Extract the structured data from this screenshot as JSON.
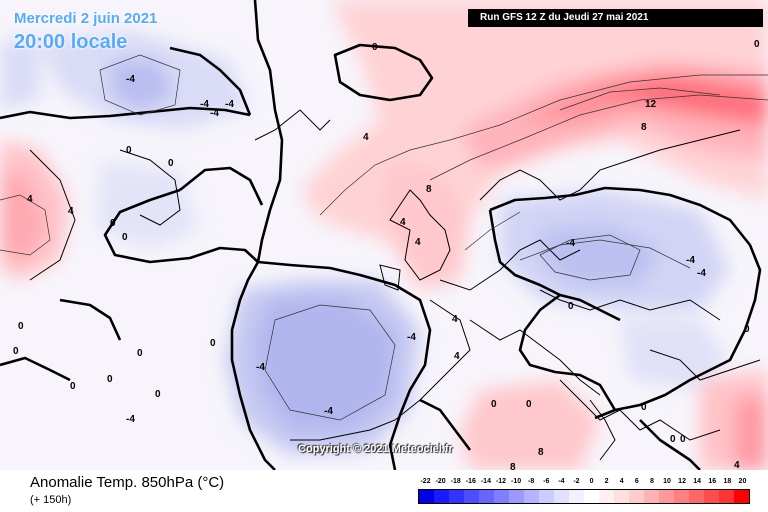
{
  "header": {
    "valid_date": "Mercredi 2 juin 2021",
    "valid_time": "20:00 locale",
    "run_info": "Run GFS 12 Z du Jeudi 27 mai 2021"
  },
  "map": {
    "contour_labels": [
      "0",
      "0",
      "0",
      "0",
      "0",
      "0",
      "0",
      "0",
      "0",
      "0",
      "0",
      "0",
      "0",
      "0",
      "0",
      "0",
      "0",
      "0",
      "0",
      "0",
      "-4",
      "-4",
      "-4",
      "-4",
      "-4",
      "-4",
      "-4",
      "-4",
      "-4",
      "-4",
      "-4",
      "4",
      "4",
      "4",
      "4",
      "4",
      "4",
      "4",
      "4",
      "8",
      "8",
      "8",
      "8",
      "12"
    ],
    "copyright": "Copyright © 2021 Meteociel.fr"
  },
  "footer": {
    "parameter": "Anomalie Temp. 850hPa (°C)",
    "lead_time": "(+ 150h)"
  },
  "legend": {
    "labels": [
      "-22",
      "-20",
      "-18",
      "-16",
      "-14",
      "-12",
      "-10",
      "-8",
      "-6",
      "-4",
      "-2",
      "0",
      "2",
      "4",
      "6",
      "8",
      "10",
      "12",
      "14",
      "16",
      "18",
      "20"
    ],
    "colors": [
      "#0000e6",
      "#1a1aff",
      "#3333ff",
      "#4d4dff",
      "#6666ff",
      "#7f7fff",
      "#9999ff",
      "#b3b3ff",
      "#ccccff",
      "#e0e0ff",
      "#f2f2ff",
      "#ffffff",
      "#fff0f0",
      "#ffe0e0",
      "#ffcccc",
      "#ffb3b3",
      "#ff9999",
      "#ff8080",
      "#ff6666",
      "#ff4d4d",
      "#ff3333",
      "#ff0000"
    ]
  }
}
